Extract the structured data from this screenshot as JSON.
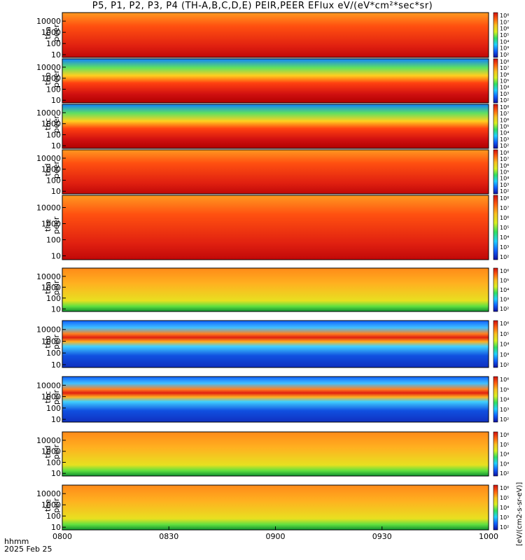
{
  "title": "P5, P1, P2, P3, P4 (TH-A,B,C,D,E) PEIR,PEER EFlux eV/(eV*cm²*sec*sr)",
  "stamp": {
    "unit_label": "hhmm",
    "date": "2025 Feb 25"
  },
  "colorbar_unit_label": "[eV/(cm2-s-sr-eV)]",
  "colorscale": [
    "#1010a0",
    "#1060ff",
    "#20d0ff",
    "#30e060",
    "#d8f020",
    "#f8c020",
    "#ff6010",
    "#d01010"
  ],
  "chart_data": {
    "type": "heatmap",
    "x_ticks": [
      "0800",
      "0830",
      "0900",
      "0930",
      "1000"
    ],
    "y_ticks": [
      "10",
      "100",
      "1000",
      "10000"
    ],
    "y_scale": "log",
    "panels": [
      {
        "probe": "tha",
        "product": "peer",
        "colorbar": [
          "10⁸",
          "10⁷",
          "10⁶",
          "10⁵",
          "10⁴",
          "10³",
          "10²"
        ]
      },
      {
        "probe": "thb",
        "product": "peer",
        "colorbar": [
          "10⁸",
          "10⁷",
          "10⁶",
          "10⁵",
          "10⁴",
          "10³",
          "10²"
        ]
      },
      {
        "probe": "thc",
        "product": "peer",
        "colorbar": [
          "10⁸",
          "10⁷",
          "10⁶",
          "10⁵",
          "10⁴",
          "10³",
          "10²"
        ]
      },
      {
        "probe": "thd",
        "product": "peer",
        "colorbar": [
          "10⁸",
          "10⁷",
          "10⁶",
          "10⁵",
          "10⁴",
          "10³",
          "10²"
        ]
      },
      {
        "probe": "the",
        "product": "peer",
        "colorbar": [
          "10⁸",
          "10⁷",
          "10⁶",
          "10⁵",
          "10⁴",
          "10³",
          "10²"
        ]
      },
      {
        "probe": "tha",
        "product": "peir",
        "colorbar": [
          "10⁶",
          "10⁵",
          "10⁴",
          "10³",
          "10²"
        ]
      },
      {
        "probe": "thb",
        "product": "peir",
        "colorbar": [
          "10⁶",
          "10⁵",
          "10⁴",
          "10³",
          "10²"
        ]
      },
      {
        "probe": "thc",
        "product": "peir",
        "colorbar": [
          "10⁶",
          "10⁵",
          "10⁴",
          "10³",
          "10²"
        ]
      },
      {
        "probe": "thd",
        "product": "peir",
        "colorbar": [
          "10⁶",
          "10⁵",
          "10⁴",
          "10³",
          "10²"
        ]
      },
      {
        "probe": "the",
        "product": "peir",
        "colorbar": [
          "10⁶",
          "10⁵",
          "10⁴",
          "10³",
          "10²"
        ]
      }
    ]
  }
}
